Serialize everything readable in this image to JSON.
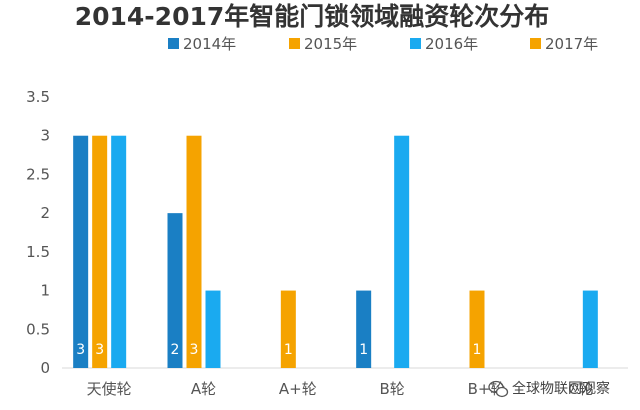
{
  "chart_data": {
    "type": "bar",
    "title": "2014-2017年智能门锁领域融资轮次分布",
    "categories": [
      "天使轮",
      "A轮",
      "A+轮",
      "B轮",
      "B+轮",
      "C轮"
    ],
    "series": [
      {
        "name": "2014年",
        "color": "#1a7fc4",
        "values": [
          3,
          2,
          0,
          1,
          0,
          0
        ]
      },
      {
        "name": "2015年",
        "color": "#f5a300",
        "values": [
          3,
          3,
          1,
          0,
          1,
          0
        ]
      },
      {
        "name": "2016年",
        "color": "#1aaaf0",
        "values": [
          3,
          1,
          0,
          3,
          0,
          1
        ]
      },
      {
        "name": "2017年",
        "color": "#f5a300",
        "values": [
          0,
          0,
          0,
          0,
          0,
          0
        ]
      }
    ],
    "data_labels": [
      {
        "series": 0,
        "category": 0,
        "text": "3"
      },
      {
        "series": 1,
        "category": 0,
        "text": "3"
      },
      {
        "series": 0,
        "category": 1,
        "text": "2"
      },
      {
        "series": 1,
        "category": 1,
        "text": "3"
      },
      {
        "series": 1,
        "category": 2,
        "text": "1"
      },
      {
        "series": 0,
        "category": 3,
        "text": "1"
      },
      {
        "series": 1,
        "category": 4,
        "text": "1"
      }
    ],
    "y_ticks": [
      "0",
      "0.5",
      "1",
      "1.5",
      "2",
      "2.5",
      "3",
      "3.5"
    ],
    "ylim": [
      0,
      3.5
    ],
    "legend_position": "top",
    "grid": false
  },
  "watermark": {
    "icon": "wechat-icon",
    "text": "全球物联网观察"
  }
}
